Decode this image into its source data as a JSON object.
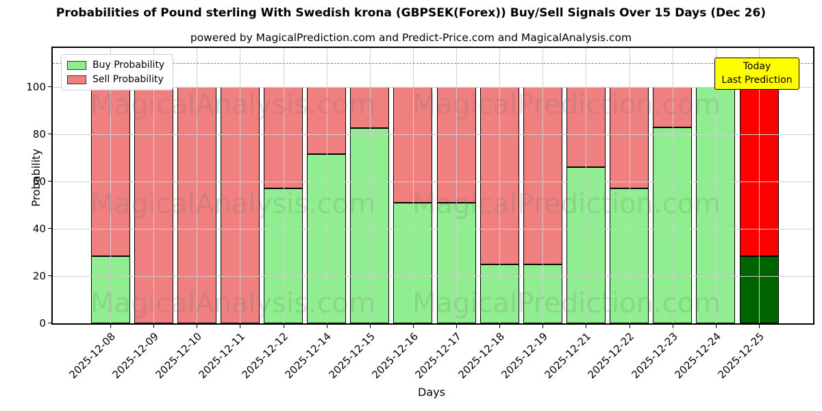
{
  "title": "Probabilities of Pound sterling With Swedish krona (GBPSEK(Forex)) Buy/Sell Signals Over 15 Days (Dec 26)",
  "subtitle": "powered by MagicalPrediction.com and Predict-Price.com and MagicalAnalysis.com",
  "legend": {
    "buy_label": "Buy Probability",
    "sell_label": "Sell Probability"
  },
  "annotation": {
    "line1": "Today",
    "line2": "Last Prediction",
    "bg_color": "#ffff00"
  },
  "watermarks": {
    "left_text": "MagicalAnalysis.com",
    "right_text": "MagicalPrediction.com"
  },
  "colors": {
    "buy": "#90ee90",
    "sell": "#f08080",
    "today_buy": "#006400",
    "today_sell": "#ff0000",
    "today_edge": "#ffa500",
    "grid": "#cfcfcf",
    "dashed_line": "#7f7f7f"
  },
  "chart_data": {
    "type": "bar",
    "stacked": true,
    "title": "Probabilities of Pound sterling With Swedish krona (GBPSEK(Forex)) Buy/Sell Signals Over 15 Days (Dec 26)",
    "xlabel": "Days",
    "ylabel": "Probability",
    "categories": [
      "2025-12-08",
      "2025-12-09",
      "2025-12-10",
      "2025-12-11",
      "2025-12-12",
      "2025-12-14",
      "2025-12-15",
      "2025-12-16",
      "2025-12-17",
      "2025-12-18",
      "2025-12-19",
      "2025-12-21",
      "2025-12-22",
      "2025-12-23",
      "2025-12-24",
      "2025-12-25"
    ],
    "series": [
      {
        "name": "Buy Probability",
        "color": "#90ee90",
        "values": [
          28.5,
          0,
          0,
          0,
          57,
          71.5,
          82.5,
          51,
          51,
          25,
          25,
          66,
          57,
          83,
          100,
          28.5
        ]
      },
      {
        "name": "Sell Probability",
        "color": "#f08080",
        "values": [
          71.5,
          100,
          100,
          100,
          43,
          28.5,
          17.5,
          49,
          49,
          75,
          75,
          34,
          43,
          17,
          0,
          71.5
        ]
      }
    ],
    "yticks": [
      0,
      20,
      40,
      60,
      80,
      100
    ],
    "ylim": [
      0,
      116.5
    ],
    "grid": true,
    "dashed_line_y": 110,
    "legend_position": "upper left",
    "today": {
      "index": 15,
      "buy_color": "#006400",
      "sell_color": "#ff0000",
      "edge_color": "#ffa500"
    }
  }
}
